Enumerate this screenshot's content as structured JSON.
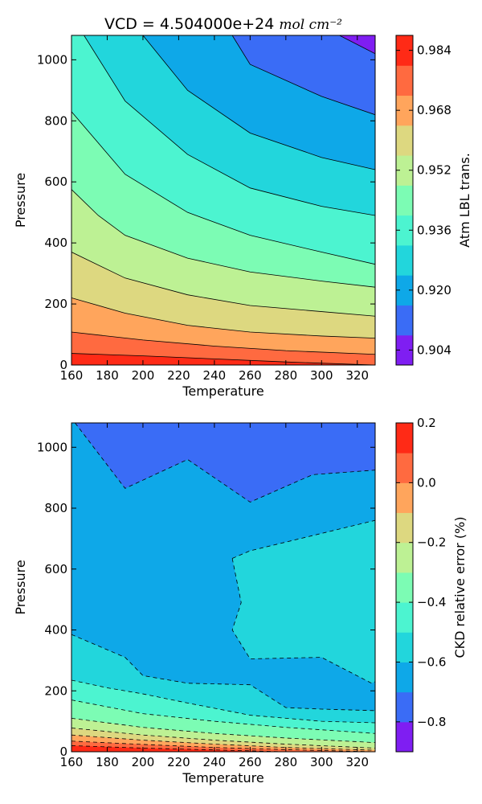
{
  "chart_data": [
    {
      "type": "contour",
      "title": "VCD = 4.504000e+24",
      "title_units": "mol cm⁻²",
      "xlabel": "Temperature",
      "ylabel": "Pressure",
      "xlim": [
        160,
        330
      ],
      "ylim": [
        0,
        1080
      ],
      "xticks": [
        160,
        180,
        200,
        220,
        240,
        260,
        280,
        300,
        320
      ],
      "yticks": [
        0,
        200,
        400,
        600,
        800,
        1000
      ],
      "colorbar": {
        "label": "Atm LBL trans.",
        "levels": [
          0.9,
          0.908,
          0.916,
          0.924,
          0.932,
          0.94,
          0.948,
          0.956,
          0.964,
          0.972,
          0.98,
          0.988
        ],
        "ticks": [
          0.904,
          0.92,
          0.936,
          0.952,
          0.968,
          0.984
        ],
        "colors": [
          "#7f1ef2",
          "#3a6cf6",
          "#0ea8e8",
          "#22d6dc",
          "#4cf4d0",
          "#7cfcb4",
          "#bdf194",
          "#ddd880",
          "#ffa55c",
          "#ff6a40",
          "#ff2a16"
        ]
      },
      "contour_lines": [
        {
          "level": 0.984,
          "x": [
            160,
            200,
            240,
            280,
            330
          ],
          "y": [
            38,
            30,
            20,
            10,
            0
          ]
        },
        {
          "level": 0.976,
          "x": [
            160,
            200,
            240,
            280,
            330
          ],
          "y": [
            108,
            82,
            62,
            47,
            35
          ]
        },
        {
          "level": 0.968,
          "x": [
            160,
            190,
            225,
            260,
            300,
            330
          ],
          "y": [
            220,
            170,
            130,
            108,
            95,
            88
          ]
        },
        {
          "level": 0.96,
          "x": [
            160,
            190,
            225,
            260,
            300,
            330
          ],
          "y": [
            370,
            285,
            230,
            195,
            175,
            160
          ]
        },
        {
          "level": 0.952,
          "x": [
            160,
            175,
            190,
            225,
            260,
            300,
            330
          ],
          "y": [
            575,
            490,
            425,
            350,
            305,
            275,
            255
          ]
        },
        {
          "level": 0.944,
          "x": [
            160,
            190,
            225,
            260,
            300,
            330
          ],
          "y": [
            830,
            625,
            500,
            425,
            370,
            330
          ]
        },
        {
          "level": 0.936,
          "x": [
            167,
            190,
            225,
            260,
            300,
            330
          ],
          "y": [
            1080,
            865,
            690,
            580,
            520,
            490
          ]
        },
        {
          "level": 0.928,
          "x": [
            200,
            225,
            260,
            300,
            330
          ],
          "y": [
            1080,
            900,
            760,
            680,
            640
          ]
        },
        {
          "level": 0.92,
          "x": [
            250,
            260,
            300,
            330
          ],
          "y": [
            1080,
            985,
            880,
            820
          ]
        },
        {
          "level": 0.912,
          "x": [
            310,
            330
          ],
          "y": [
            1080,
            1020
          ]
        }
      ]
    },
    {
      "type": "contour",
      "xlabel": "Temperature",
      "ylabel": "Pressure",
      "xlim": [
        160,
        330
      ],
      "ylim": [
        0,
        1080
      ],
      "xticks": [
        160,
        180,
        200,
        220,
        240,
        260,
        280,
        300,
        320
      ],
      "yticks": [
        0,
        200,
        400,
        600,
        800,
        1000
      ],
      "colorbar": {
        "label": "CKD relative error (%)",
        "levels": [
          -0.9,
          -0.8,
          -0.7,
          -0.6,
          -0.5,
          -0.4,
          -0.3,
          -0.2,
          -0.1,
          0.0,
          0.1,
          0.2
        ],
        "ticks": [
          -0.8,
          -0.6,
          -0.4,
          -0.2,
          0.0,
          0.2
        ],
        "colors": [
          "#7f1ef2",
          "#3a6cf6",
          "#0ea8e8",
          "#22d6dc",
          "#4cf4d0",
          "#7cfcb4",
          "#bdf194",
          "#ddd880",
          "#ffa55c",
          "#ff6a40",
          "#ff2a16"
        ]
      },
      "regions": [
        {
          "level": -0.9,
          "polygon": [
            [
              252,
              1080
            ],
            [
              262,
              1035
            ],
            [
              270,
              1080
            ]
          ]
        },
        {
          "level": -0.8,
          "polygon": [
            [
              160,
              1080
            ],
            [
              162,
              1080
            ],
            [
              190,
              865
            ],
            [
              225,
              960
            ],
            [
              260,
              820
            ],
            [
              295,
              910
            ],
            [
              330,
              925
            ],
            [
              330,
              1080
            ]
          ]
        },
        {
          "level": -0.6,
          "polygon": [
            [
              250,
              635
            ],
            [
              255,
              490
            ],
            [
              250,
              400
            ],
            [
              260,
              305
            ],
            [
              300,
              310
            ],
            [
              328,
              225
            ],
            [
              330,
              230
            ],
            [
              330,
              760
            ],
            [
              260,
              660
            ]
          ]
        },
        {
          "level": -0.6,
          "polygon": [
            [
              160,
              385
            ],
            [
              190,
              310
            ],
            [
              200,
              250
            ],
            [
              225,
              225
            ],
            [
              260,
              220
            ],
            [
              280,
              145
            ],
            [
              300,
              140
            ],
            [
              330,
              135
            ],
            [
              330,
              0
            ],
            [
              160,
              0
            ]
          ]
        },
        {
          "level": -0.5,
          "polygon": [
            [
              160,
              235
            ],
            [
              180,
              210
            ],
            [
              200,
              190
            ],
            [
              225,
              160
            ],
            [
              260,
              120
            ],
            [
              300,
              100
            ],
            [
              330,
              95
            ],
            [
              330,
              0
            ],
            [
              160,
              0
            ]
          ]
        },
        {
          "level": -0.4,
          "polygon": [
            [
              160,
              170
            ],
            [
              200,
              125
            ],
            [
              240,
              100
            ],
            [
              280,
              80
            ],
            [
              330,
              60
            ],
            [
              330,
              0
            ],
            [
              160,
              0
            ]
          ]
        },
        {
          "level": -0.3,
          "polygon": [
            [
              160,
              110
            ],
            [
              200,
              80
            ],
            [
              240,
              60
            ],
            [
              280,
              45
            ],
            [
              330,
              30
            ],
            [
              330,
              0
            ],
            [
              160,
              0
            ]
          ]
        },
        {
          "level": -0.2,
          "polygon": [
            [
              160,
              78
            ],
            [
              200,
              55
            ],
            [
              240,
              38
            ],
            [
              280,
              25
            ],
            [
              330,
              12
            ],
            [
              330,
              0
            ],
            [
              160,
              0
            ]
          ]
        },
        {
          "level": -0.1,
          "polygon": [
            [
              160,
              55
            ],
            [
              200,
              38
            ],
            [
              240,
              25
            ],
            [
              280,
              14
            ],
            [
              330,
              5
            ],
            [
              330,
              0
            ],
            [
              160,
              0
            ]
          ]
        },
        {
          "level": 0.0,
          "polygon": [
            [
              160,
              35
            ],
            [
              200,
              24
            ],
            [
              240,
              14
            ],
            [
              280,
              7
            ],
            [
              330,
              0
            ],
            [
              160,
              0
            ]
          ]
        },
        {
          "level": 0.1,
          "polygon": [
            [
              160,
              20
            ],
            [
              200,
              12
            ],
            [
              240,
              6
            ],
            [
              280,
              0
            ],
            [
              160,
              0
            ]
          ]
        }
      ],
      "contour_lines": [
        {
          "level": -0.8,
          "x": [
            162,
            190,
            225,
            260,
            295,
            330
          ],
          "y": [
            1080,
            865,
            960,
            820,
            910,
            925
          ]
        },
        {
          "level": -0.7,
          "x": [
            250,
            255,
            250,
            260,
            300,
            328,
            330
          ],
          "y": [
            635,
            490,
            400,
            305,
            310,
            225,
            230
          ]
        },
        {
          "level": -0.7,
          "x": [
            250,
            260,
            330
          ],
          "y": [
            635,
            660,
            760
          ]
        },
        {
          "level": -0.7,
          "x": [
            160,
            190,
            200,
            225,
            260,
            280,
            300,
            330
          ],
          "y": [
            385,
            310,
            250,
            225,
            220,
            145,
            140,
            135
          ]
        },
        {
          "level": -0.6,
          "x": [
            160,
            180,
            200,
            225,
            260,
            300,
            330
          ],
          "y": [
            235,
            210,
            190,
            160,
            120,
            100,
            95
          ]
        },
        {
          "level": -0.5,
          "x": [
            160,
            200,
            240,
            280,
            330
          ],
          "y": [
            170,
            125,
            100,
            80,
            60
          ]
        },
        {
          "level": -0.4,
          "x": [
            160,
            200,
            240,
            280,
            330
          ],
          "y": [
            110,
            80,
            60,
            45,
            30
          ]
        },
        {
          "level": -0.3,
          "x": [
            160,
            200,
            240,
            280,
            330
          ],
          "y": [
            78,
            55,
            38,
            25,
            12
          ]
        },
        {
          "level": -0.2,
          "x": [
            160,
            200,
            240,
            280,
            330
          ],
          "y": [
            55,
            38,
            25,
            14,
            5
          ]
        },
        {
          "level": -0.1,
          "x": [
            160,
            200,
            240,
            280,
            330
          ],
          "y": [
            35,
            24,
            14,
            7,
            0
          ]
        },
        {
          "level": 0.0,
          "x": [
            160,
            200,
            240,
            280
          ],
          "y": [
            20,
            12,
            6,
            0
          ]
        }
      ]
    }
  ]
}
